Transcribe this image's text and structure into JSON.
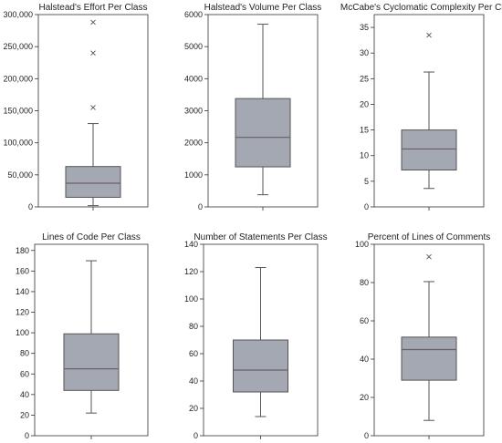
{
  "chart_data": [
    {
      "type": "box",
      "title": "Halstead's Effort Per Class",
      "ylim": [
        0,
        300000
      ],
      "yticks": [
        0,
        50000,
        100000,
        150000,
        200000,
        250000,
        300000
      ],
      "ytick_labels": [
        "0",
        "50,000",
        "100,000",
        "150,000",
        "200,000",
        "250,000",
        "300,000"
      ],
      "whisker_low": 2000,
      "q1": 15000,
      "median": 37000,
      "q3": 63000,
      "whisker_high": 130000,
      "outliers": [
        155000,
        240000,
        288000
      ]
    },
    {
      "type": "box",
      "title": "Halstead's Volume Per Class",
      "ylim": [
        0,
        6000
      ],
      "yticks": [
        0,
        1000,
        2000,
        3000,
        4000,
        5000,
        6000
      ],
      "ytick_labels": [
        "0",
        "1000",
        "2000",
        "3000",
        "4000",
        "5000",
        "6000"
      ],
      "whisker_low": 380,
      "q1": 1250,
      "median": 2170,
      "q3": 3380,
      "whisker_high": 5700,
      "outliers": []
    },
    {
      "type": "box",
      "title": "McCabe's Cyclomatic Complexity Per Class",
      "ylim": [
        0,
        37.5
      ],
      "yticks": [
        0,
        5,
        10,
        15,
        20,
        25,
        30,
        35
      ],
      "ytick_labels": [
        "0",
        "5",
        "10",
        "15",
        "20",
        "25",
        "30",
        "35"
      ],
      "whisker_low": 3.6,
      "q1": 7.2,
      "median": 11.3,
      "q3": 15.0,
      "whisker_high": 26.3,
      "outliers": [
        33.5
      ]
    },
    {
      "type": "box",
      "title": "Lines of Code Per Class",
      "ylim": [
        0,
        186
      ],
      "yticks": [
        0,
        20,
        40,
        60,
        80,
        100,
        120,
        140,
        160,
        180
      ],
      "ytick_labels": [
        "0",
        "20",
        "40",
        "60",
        "80",
        "100",
        "120",
        "140",
        "160",
        "180"
      ],
      "whisker_low": 22,
      "q1": 44,
      "median": 65,
      "q3": 99,
      "whisker_high": 170,
      "outliers": []
    },
    {
      "type": "box",
      "title": "Number of Statements Per Class",
      "ylim": [
        0,
        140
      ],
      "yticks": [
        0,
        20,
        40,
        60,
        80,
        100,
        120,
        140
      ],
      "ytick_labels": [
        "0",
        "20",
        "40",
        "60",
        "80",
        "100",
        "120",
        "140"
      ],
      "whisker_low": 14,
      "q1": 32,
      "median": 48,
      "q3": 70,
      "whisker_high": 123,
      "outliers": []
    },
    {
      "type": "box",
      "title": "Percent of Lines of Comments",
      "ylim": [
        0,
        100
      ],
      "yticks": [
        0,
        20,
        40,
        60,
        80,
        100
      ],
      "ytick_labels": [
        "0",
        "20",
        "40",
        "60",
        "80",
        "100"
      ],
      "whisker_low": 8,
      "q1": 29,
      "median": 45,
      "q3": 51.5,
      "whisker_high": 80.5,
      "outliers": [
        93.5
      ]
    }
  ],
  "colors": {
    "box_fill": "#a3a8b3",
    "median_line": "#6b5f66",
    "lines": "#555555",
    "frame": "#333333"
  },
  "grid": false
}
